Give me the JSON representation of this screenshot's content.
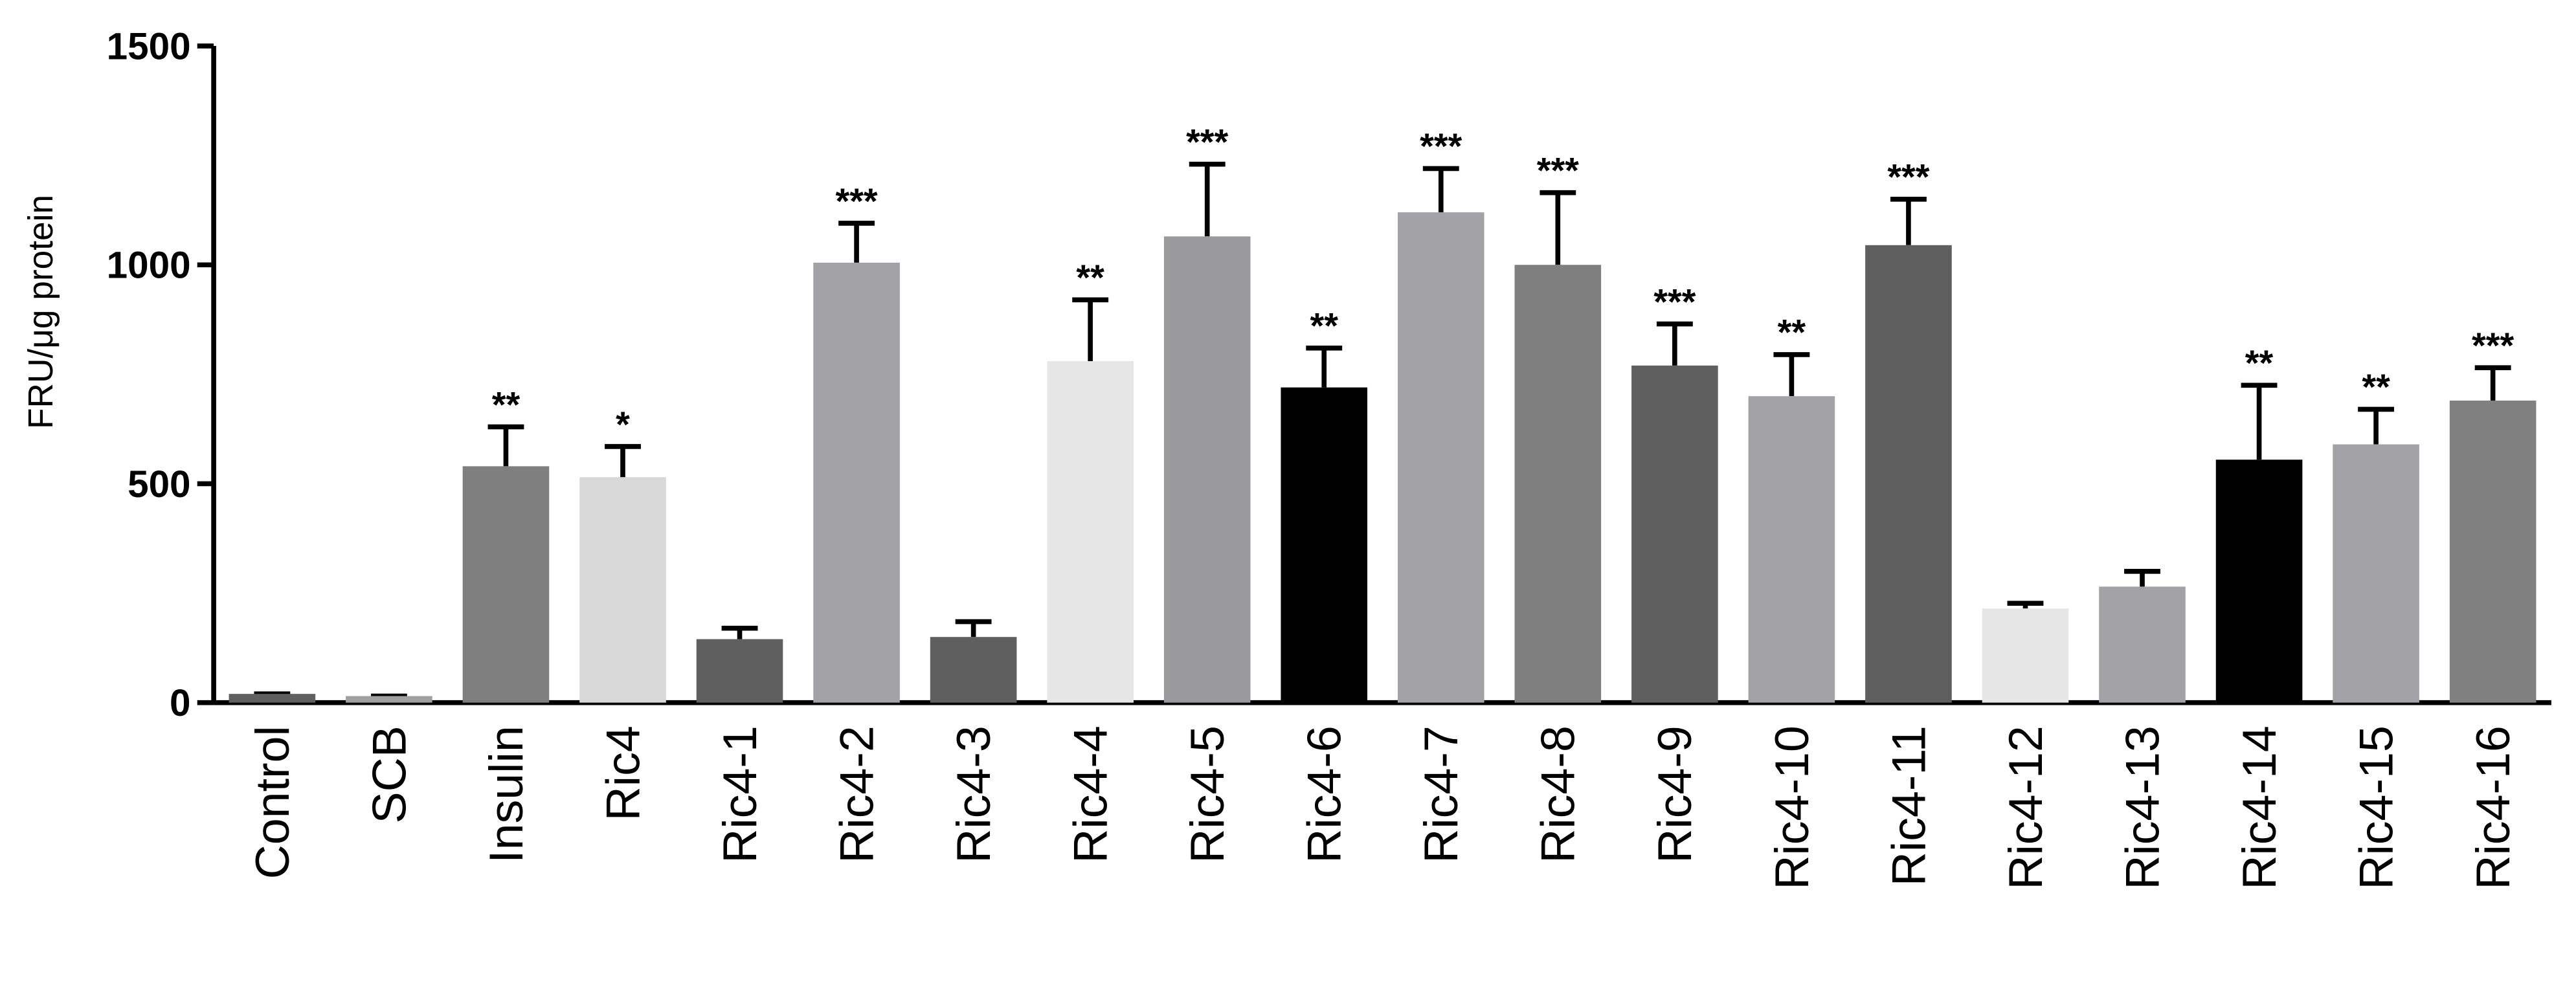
{
  "chart_data": {
    "type": "bar",
    "ylabel": "FRU/μg protein",
    "categories": [
      "Control",
      "SCB",
      "Insulin",
      "Ric4",
      "Ric4-1",
      "Ric4-2",
      "Ric4-3",
      "Ric4-4",
      "Ric4-5",
      "Ric4-6",
      "Ric4-7",
      "Ric4-8",
      "Ric4-9",
      "Ric4-10",
      "Ric4-11",
      "Ric4-12",
      "Ric4-13",
      "Ric4-14",
      "Ric4-15",
      "Ric4-16"
    ],
    "values": [
      20,
      15,
      540,
      515,
      145,
      1005,
      150,
      780,
      1065,
      720,
      1120,
      1000,
      770,
      700,
      1045,
      215,
      265,
      555,
      590,
      690
    ],
    "errors": [
      0,
      0,
      90,
      70,
      25,
      90,
      35,
      140,
      165,
      90,
      100,
      165,
      95,
      95,
      105,
      12,
      35,
      170,
      80,
      75
    ],
    "annotations": [
      null,
      null,
      "**",
      "*",
      null,
      "***",
      null,
      "**",
      "***",
      "**",
      "***",
      "***",
      "***",
      "**",
      "***",
      null,
      null,
      "**",
      "**",
      "***"
    ],
    "colors": [
      "#606060",
      "#a0a0a0",
      "#7f7f7f",
      "#d8d8d8",
      "#5f5f5f",
      "#a3a2a6",
      "#5f5f5f",
      "#e6e6e6",
      "#9a999c",
      "#000000",
      "#a3a2a6",
      "#7f7f7f",
      "#5f5f5f",
      "#a3a2a6",
      "#5f5f5f",
      "#e6e6e6",
      "#a3a2a6",
      "#000000",
      "#a3a2a6",
      "#808080"
    ],
    "ylim": [
      0,
      1500
    ],
    "yticks": [
      0,
      500,
      1000,
      1500
    ]
  }
}
